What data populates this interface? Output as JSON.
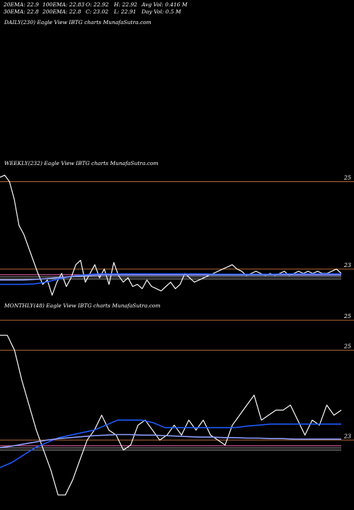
{
  "stats": {
    "ema20": "20EMA: 22.9",
    "ema30": "30EMA: 22.8",
    "ema100": "100EMA: 22.83",
    "ema200": "200EMA: 22.8",
    "open": "O: 22.92",
    "close": "C: 23.02",
    "high": "H: 22.92",
    "low": "L: 22.91",
    "avg_vol": "Avg Vol: 0.416  M",
    "day_vol": "Day Vol: 0.5  M"
  },
  "panels": {
    "daily": {
      "label": "DAILY(230) Eagle   View  IBTG charts MunafaSutra.com"
    },
    "weekly": {
      "label": "WEEKLY(232) Eagle   View  IBTG charts MunafaSutra.com"
    },
    "monthly": {
      "label": "MONTHLY(48) Eagle   View  IBTG charts MunafaSutra.com"
    }
  },
  "colors": {
    "background": "#000000",
    "price": "#ffffff",
    "ema_short": "#1e5bff",
    "ema_long": "#8fa0ff",
    "grid": "#b56a3a",
    "band": "#ff69b4"
  },
  "chart_data": [
    {
      "type": "line",
      "name": "weekly",
      "ticks": [
        "25",
        "23"
      ],
      "tick_values": [
        25,
        23
      ],
      "ylim": [
        22.3,
        25.3
      ],
      "series": [
        {
          "role": "price",
          "values": [
            25.1,
            25.15,
            25.0,
            24.6,
            24.0,
            23.8,
            23.5,
            23.2,
            22.9,
            22.65,
            22.75,
            22.4,
            22.7,
            22.9,
            22.6,
            22.8,
            23.1,
            23.2,
            22.7,
            22.9,
            23.1,
            22.8,
            23.0,
            22.65,
            23.15,
            22.85,
            22.7,
            22.8,
            22.6,
            22.65,
            22.55,
            22.75,
            22.6,
            22.55,
            22.5,
            22.6,
            22.7,
            22.55,
            22.65,
            22.9,
            22.8,
            22.7,
            22.75,
            22.8,
            22.85,
            22.9,
            22.95,
            23.0,
            23.05,
            23.1,
            23.0,
            22.95,
            22.85,
            22.9,
            22.95,
            22.9,
            22.85,
            22.9,
            22.85,
            22.9,
            22.95,
            22.85,
            22.9,
            22.95,
            22.9,
            22.95,
            22.9,
            22.95,
            22.9,
            22.9,
            22.95,
            23.0,
            22.9
          ]
        },
        {
          "role": "ema_short",
          "values": [
            22.65,
            22.65,
            22.65,
            22.66,
            22.7,
            22.76,
            22.82,
            22.86,
            22.88,
            22.89,
            22.89,
            22.89,
            22.89,
            22.89,
            22.89,
            22.89,
            22.89,
            22.89,
            22.89,
            22.88,
            22.88,
            22.88,
            22.88,
            22.88,
            22.88,
            22.89,
            22.89,
            22.89,
            22.89,
            22.89,
            22.89
          ]
        },
        {
          "role": "ema_long",
          "values": [
            22.75,
            22.75,
            22.75,
            22.76,
            22.78,
            22.8,
            22.82,
            22.84,
            22.85,
            22.86,
            22.86,
            22.86,
            22.86,
            22.86,
            22.86,
            22.86,
            22.86,
            22.86,
            22.86,
            22.86,
            22.86,
            22.86,
            22.86,
            22.86,
            22.86,
            22.86,
            22.86,
            22.86,
            22.86,
            22.86,
            22.86
          ]
        }
      ]
    },
    {
      "type": "line",
      "name": "monthly",
      "ticks": [
        "25",
        "25",
        "23"
      ],
      "tick_values": [
        25.3,
        24.7,
        22.9
      ],
      "ylim": [
        21.5,
        25.5
      ],
      "series": [
        {
          "role": "price",
          "values": [
            25.0,
            25.0,
            24.7,
            24.1,
            23.6,
            23.1,
            22.7,
            22.3,
            21.8,
            21.8,
            22.1,
            22.5,
            22.9,
            23.1,
            23.4,
            23.1,
            23.0,
            22.7,
            22.8,
            23.2,
            23.3,
            23.1,
            22.9,
            23.0,
            23.2,
            23.0,
            23.3,
            23.1,
            23.3,
            23.0,
            22.9,
            22.8,
            23.2,
            23.4,
            23.6,
            23.8,
            23.3,
            23.4,
            23.5,
            23.5,
            23.6,
            23.3,
            23.0,
            23.3,
            23.2,
            23.6,
            23.4,
            23.5
          ]
        },
        {
          "role": "ema_short",
          "values": [
            22.35,
            22.45,
            22.6,
            22.75,
            22.85,
            22.95,
            23.0,
            23.05,
            23.1,
            23.2,
            23.3,
            23.3,
            23.3,
            23.25,
            23.15,
            23.15,
            23.15,
            23.15,
            23.15,
            23.15,
            23.15,
            23.18,
            23.2,
            23.22,
            23.22,
            23.22,
            23.22,
            23.22,
            23.22,
            23.22
          ]
        },
        {
          "role": "ema_long",
          "values": [
            22.75,
            22.78,
            22.82,
            22.86,
            22.9,
            22.93,
            22.95,
            22.97,
            22.99,
            23.0,
            23.01,
            23.01,
            23.0,
            23.0,
            22.99,
            22.98,
            22.97,
            22.96,
            22.96,
            22.95,
            22.95,
            22.94,
            22.94,
            22.93,
            22.93,
            22.92,
            22.92,
            22.92,
            22.92,
            22.92
          ]
        }
      ]
    }
  ]
}
